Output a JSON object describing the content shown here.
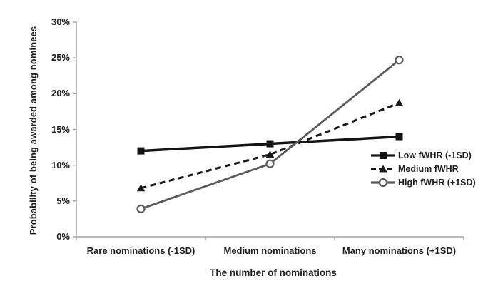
{
  "chart_data": {
    "type": "line",
    "title": "",
    "xlabel": "The number of nominations",
    "ylabel": "Probability of being awarded among nominees",
    "categories": [
      "Rare nominations (-1SD)",
      "Medium nominations",
      "Many nominations (+1SD)"
    ],
    "series": [
      {
        "name": "Low fWHR (-1SD)",
        "values": [
          12,
          13,
          14
        ],
        "line_style": "solid",
        "color": "#141414",
        "marker": "square"
      },
      {
        "name": "Medium fWHR",
        "values": [
          6.8,
          11.5,
          18.7
        ],
        "line_style": "dashed",
        "color": "#1a1a1a",
        "marker": "triangle"
      },
      {
        "name": "High fWHR (+1SD)",
        "values": [
          3.9,
          10.2,
          24.7
        ],
        "line_style": "solid",
        "color": "#5a5a5a",
        "marker": "circle-open"
      }
    ],
    "ylim": [
      0,
      30
    ],
    "y_tick_step": 5,
    "y_tick_labels": [
      "0%",
      "5%",
      "10%",
      "15%",
      "20%",
      "25%",
      "30%"
    ],
    "grid": false,
    "legend_position": "inside-right",
    "axis_color": "#a3a3a3",
    "text_color": "#1f1f1f",
    "background_color": "#ffffff"
  }
}
